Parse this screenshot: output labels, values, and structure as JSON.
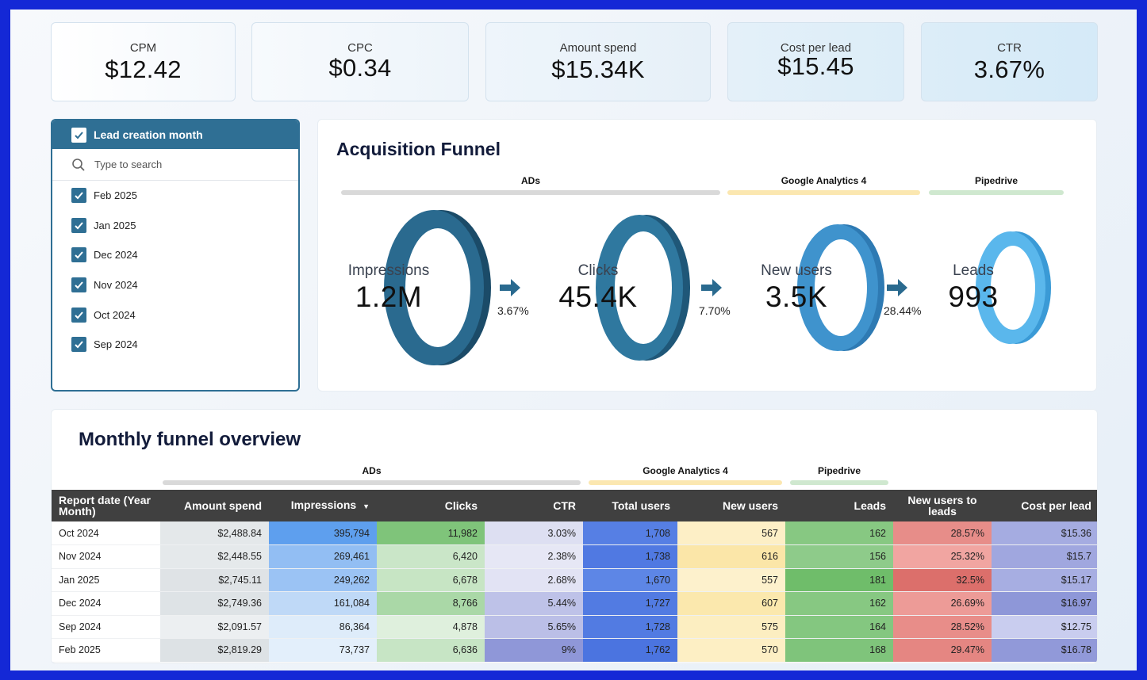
{
  "kpis": [
    {
      "label": "CPM",
      "value": "$12.42"
    },
    {
      "label": "CPC",
      "value": "$0.34"
    },
    {
      "label": "Amount spend",
      "value": "$15.34K"
    },
    {
      "label": "Cost per lead",
      "value": "$15.45"
    },
    {
      "label": "CTR",
      "value": "3.67%"
    }
  ],
  "filter": {
    "title": "Lead creation month",
    "search_placeholder": "Type to search",
    "options": [
      "Feb 2025",
      "Jan 2025",
      "Dec 2024",
      "Nov 2024",
      "Oct 2024",
      "Sep 2024"
    ]
  },
  "funnel": {
    "title": "Acquisition Funnel",
    "groups": [
      "ADs",
      "Google Analytics 4",
      "Pipedrive"
    ],
    "stages": [
      {
        "label": "Impressions",
        "value": "1.2M"
      },
      {
        "label": "Clicks",
        "value": "45.4K"
      },
      {
        "label": "New users",
        "value": "3.5K"
      },
      {
        "label": "Leads",
        "value": "993"
      }
    ],
    "rates": [
      "3.67%",
      "7.70%",
      "28.44%"
    ]
  },
  "table": {
    "title": "Monthly funnel overview",
    "groups": [
      "ADs",
      "Google Analytics 4",
      "Pipedrive"
    ],
    "sort_indicator": "▼",
    "headers": [
      "Report date (Year Month)",
      "Amount spend",
      "Impressions",
      "Clicks",
      "CTR",
      "Total users",
      "New users",
      "Leads",
      "New users to leads",
      "Cost per lead"
    ],
    "rows": [
      [
        "Oct 2024",
        "$2,488.84",
        "395,794",
        "11,982",
        "3.03%",
        "1,708",
        "567",
        "162",
        "28.57%",
        "$15.36"
      ],
      [
        "Nov 2024",
        "$2,448.55",
        "269,461",
        "6,420",
        "2.38%",
        "1,738",
        "616",
        "156",
        "25.32%",
        "$15.7"
      ],
      [
        "Jan 2025",
        "$2,745.11",
        "249,262",
        "6,678",
        "2.68%",
        "1,670",
        "557",
        "181",
        "32.5%",
        "$15.17"
      ],
      [
        "Dec 2024",
        "$2,749.36",
        "161,084",
        "8,766",
        "5.44%",
        "1,727",
        "607",
        "162",
        "26.69%",
        "$16.97"
      ],
      [
        "Sep 2024",
        "$2,091.57",
        "86,364",
        "4,878",
        "5.65%",
        "1,728",
        "575",
        "164",
        "28.52%",
        "$12.75"
      ],
      [
        "Feb 2025",
        "$2,819.29",
        "73,737",
        "6,636",
        "9%",
        "1,762",
        "570",
        "168",
        "29.47%",
        "$16.78"
      ]
    ]
  },
  "colors": {
    "frame": "#1428d6",
    "filter_accent": "#2f6f94",
    "ads_bar": "#d9d9d9",
    "ga4_bar": "#fbe7b0",
    "pipedrive_bar": "#cfe8cf",
    "header_bg": "#404040"
  }
}
